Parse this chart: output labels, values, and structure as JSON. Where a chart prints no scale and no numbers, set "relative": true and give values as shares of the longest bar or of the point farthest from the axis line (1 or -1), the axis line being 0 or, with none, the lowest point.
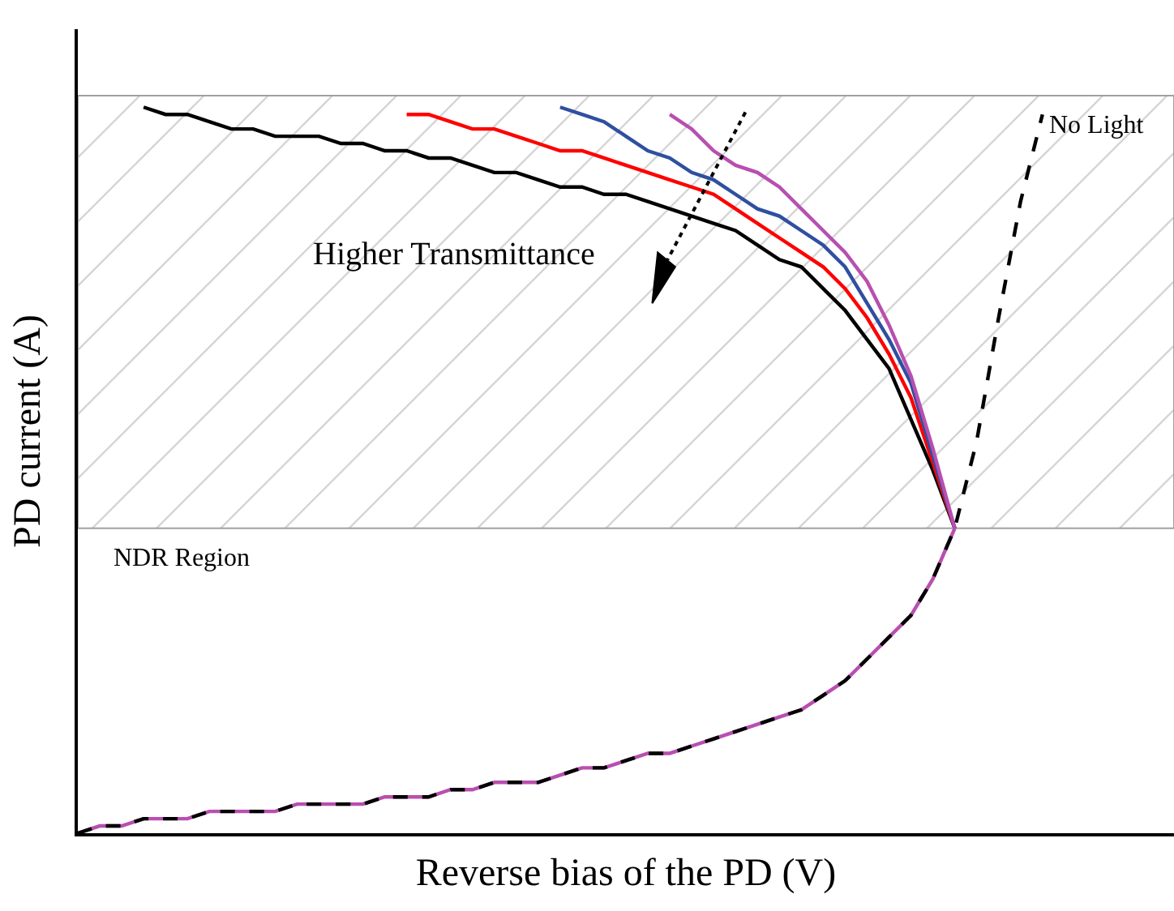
{
  "chart_data": {
    "type": "line",
    "relative": true,
    "xlabel": "Reverse bias of the PD (V)",
    "ylabel": "PD current (A)",
    "tick_labels": false,
    "marker": "none",
    "categories": [
      null,
      null,
      null,
      null,
      null,
      null,
      null,
      null,
      null,
      null,
      null,
      null,
      null,
      null,
      null,
      null,
      null,
      null,
      null,
      null,
      null,
      null,
      null,
      null,
      null,
      null,
      null,
      null,
      null,
      null,
      null,
      null,
      null,
      null,
      null,
      null,
      null,
      null,
      null,
      null,
      null,
      null,
      null,
      null,
      null,
      null,
      null,
      null,
      null,
      null,
      null
    ],
    "series": [
      {
        "color": "#000000",
        "line_style": "solid",
        "values": [
          null,
          null,
          null,
          1.0,
          0.99,
          0.99,
          0.98,
          0.97,
          0.97,
          0.96,
          0.96,
          0.96,
          0.95,
          0.95,
          0.94,
          0.94,
          0.93,
          0.93,
          0.92,
          0.91,
          0.91,
          0.9,
          0.89,
          0.89,
          0.88,
          0.88,
          0.87,
          0.86,
          0.85,
          0.84,
          0.83,
          0.81,
          0.79,
          0.78,
          0.75,
          0.72,
          0.68,
          0.64,
          0.57,
          0.5,
          0.42,
          null,
          null,
          null,
          null,
          null,
          null,
          null,
          null,
          null,
          null
        ]
      },
      {
        "color": "#ff0000",
        "line_style": "solid",
        "values": [
          null,
          null,
          null,
          null,
          null,
          null,
          null,
          null,
          null,
          null,
          null,
          null,
          null,
          null,
          null,
          0.99,
          0.99,
          0.98,
          0.97,
          0.97,
          0.96,
          0.95,
          0.94,
          0.94,
          0.93,
          0.92,
          0.91,
          0.9,
          0.89,
          0.88,
          0.86,
          0.84,
          0.82,
          0.8,
          0.78,
          0.75,
          0.71,
          0.66,
          0.6,
          0.51,
          0.42,
          null,
          null,
          null,
          null,
          null,
          null,
          null,
          null,
          null,
          null
        ]
      },
      {
        "color": "#2f4fa0",
        "line_style": "solid",
        "values": [
          null,
          null,
          null,
          null,
          null,
          null,
          null,
          null,
          null,
          null,
          null,
          null,
          null,
          null,
          null,
          null,
          null,
          null,
          null,
          null,
          null,
          null,
          1.0,
          0.99,
          0.98,
          0.96,
          0.94,
          0.93,
          0.91,
          0.9,
          0.88,
          0.86,
          0.85,
          0.83,
          0.81,
          0.78,
          0.73,
          0.68,
          0.62,
          0.52,
          0.42,
          null,
          null,
          null,
          null,
          null,
          null,
          null,
          null,
          null,
          null
        ]
      },
      {
        "color": "#b84fb0",
        "line_style": "solid",
        "values": [
          null,
          null,
          null,
          null,
          null,
          null,
          null,
          null,
          null,
          null,
          null,
          null,
          null,
          null,
          null,
          null,
          null,
          null,
          null,
          null,
          null,
          null,
          null,
          null,
          null,
          null,
          null,
          0.99,
          0.97,
          0.94,
          0.92,
          0.91,
          0.89,
          0.86,
          0.83,
          0.8,
          0.76,
          0.7,
          0.63,
          0.53,
          0.42,
          null,
          null,
          null,
          null,
          null,
          null,
          null,
          null,
          null,
          null
        ]
      },
      {
        "color": "#b84fb0",
        "line_style": "solid",
        "values": [
          0,
          0.01,
          0.01,
          0.02,
          0.02,
          0.02,
          0.03,
          0.03,
          0.03,
          0.03,
          0.04,
          0.04,
          0.04,
          0.04,
          0.05,
          0.05,
          0.05,
          0.06,
          0.06,
          0.07,
          0.07,
          0.07,
          0.08,
          0.09,
          0.09,
          0.1,
          0.11,
          0.11,
          0.12,
          0.13,
          0.14,
          0.15,
          0.16,
          0.17,
          0.19,
          0.21,
          0.24,
          0.27,
          0.3,
          0.35,
          0.42,
          null,
          null,
          null,
          null,
          null,
          null,
          null,
          null,
          null,
          null
        ]
      },
      {
        "color": "#000000",
        "line_style": "dashed",
        "values": [
          0,
          0.01,
          0.01,
          0.02,
          0.02,
          0.02,
          0.03,
          0.03,
          0.03,
          0.03,
          0.04,
          0.04,
          0.04,
          0.04,
          0.05,
          0.05,
          0.05,
          0.06,
          0.06,
          0.07,
          0.07,
          0.07,
          0.08,
          0.09,
          0.09,
          0.1,
          0.11,
          0.11,
          0.12,
          0.13,
          0.14,
          0.15,
          0.16,
          0.17,
          0.19,
          0.21,
          0.24,
          0.27,
          0.3,
          0.35,
          0.42,
          0.54,
          0.71,
          0.87,
          0.99,
          null,
          null,
          null,
          null,
          null,
          null
        ]
      }
    ],
    "bands": [
      {
        "axis": "y",
        "from": 0.42,
        "to": 1.016,
        "label": "NDR Region",
        "color": "#a0a0a0"
      }
    ],
    "annotations": [
      "No Light",
      "Higher Transmittance"
    ]
  }
}
